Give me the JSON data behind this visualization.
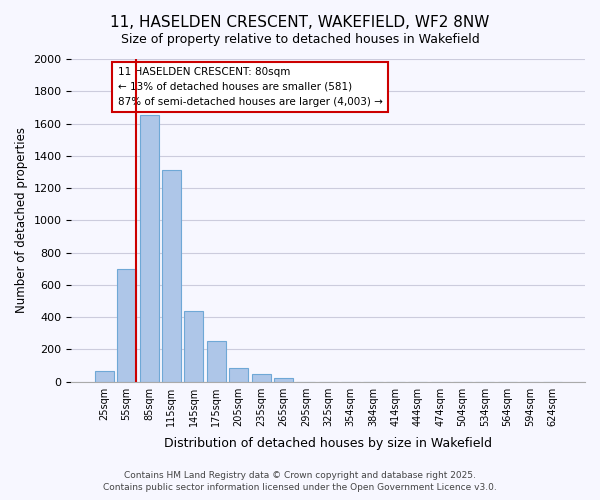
{
  "title": "11, HASELDEN CRESCENT, WAKEFIELD, WF2 8NW",
  "subtitle": "Size of property relative to detached houses in Wakefield",
  "xlabel": "Distribution of detached houses by size in Wakefield",
  "ylabel": "Number of detached properties",
  "bar_values": [
    65,
    700,
    1650,
    1310,
    440,
    255,
    85,
    50,
    25,
    0,
    0,
    0,
    0,
    0,
    0,
    0,
    0,
    0,
    0,
    0,
    0
  ],
  "bar_labels": [
    "25sqm",
    "55sqm",
    "85sqm",
    "115sqm",
    "145sqm",
    "175sqm",
    "205sqm",
    "235sqm",
    "265sqm",
    "295sqm",
    "325sqm",
    "354sqm",
    "384sqm",
    "414sqm",
    "444sqm",
    "474sqm",
    "504sqm",
    "534sqm",
    "564sqm",
    "594sqm",
    "624sqm"
  ],
  "bar_color": "#aec6e8",
  "bar_edge_color": "#6fa8d6",
  "vline_color": "#cc0000",
  "vline_pos": 1.425,
  "ylim": [
    0,
    2000
  ],
  "yticks": [
    0,
    200,
    400,
    600,
    800,
    1000,
    1200,
    1400,
    1600,
    1800,
    2000
  ],
  "annotation_title": "11 HASELDEN CRESCENT: 80sqm",
  "annotation_line1": "← 13% of detached houses are smaller (581)",
  "annotation_line2": "87% of semi-detached houses are larger (4,003) →",
  "annotation_box_color": "#ffffff",
  "annotation_box_edge": "#cc0000",
  "footer_line1": "Contains HM Land Registry data © Crown copyright and database right 2025.",
  "footer_line2": "Contains public sector information licensed under the Open Government Licence v3.0.",
  "background_color": "#f7f7ff",
  "grid_color": "#ccccdd"
}
